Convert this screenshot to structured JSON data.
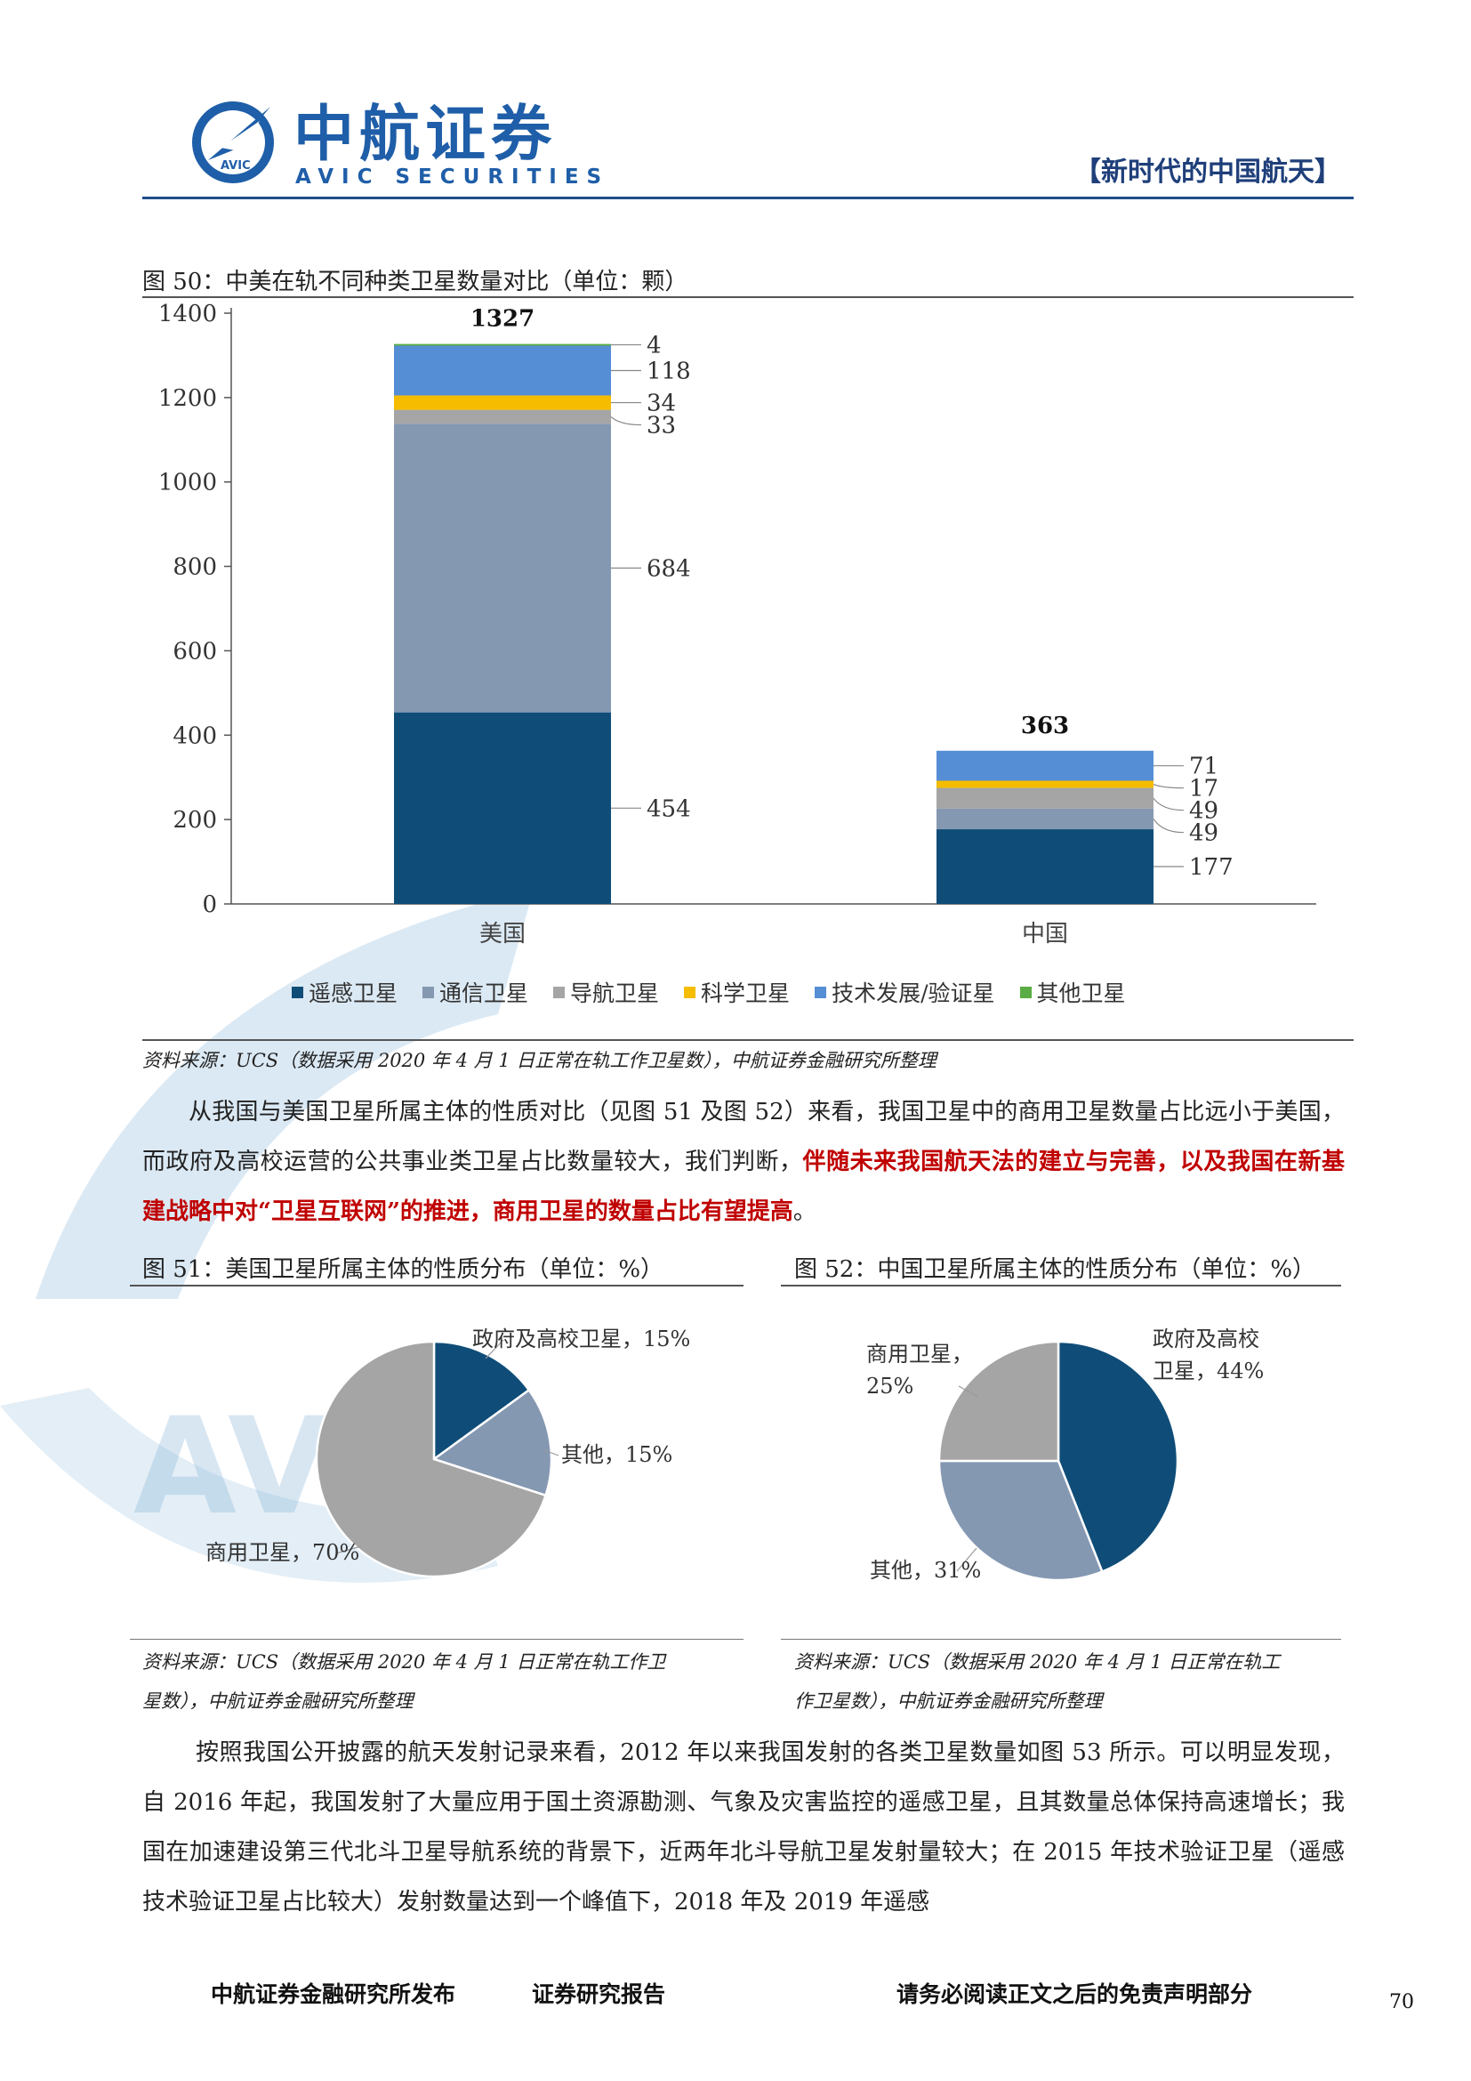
{
  "header": {
    "logo_cn": "中航证券",
    "logo_en": "AVIC SECURITIES",
    "logo_badge": "AVIC",
    "section_tag": "【新时代的中国航天】"
  },
  "watermark": "AVIC",
  "figure50": {
    "title": "图 50：中美在轨不同种类卫星数量对比（单位：颗）",
    "source": "资料来源：UCS（数据采用 2020 年 4 月 1 日正常在轨工作卫星数），中航证券金融研究所整理"
  },
  "figure51": {
    "title": "图 51：美国卫星所属主体的性质分布（单位：%）",
    "source_line1": "资料来源：UCS（数据采用 2020 年 4 月 1 日正常在轨工作卫",
    "source_line2": "星数），中航证券金融研究所整理"
  },
  "figure52": {
    "title": "图 52：中国卫星所属主体的性质分布（单位：%）",
    "source_line1": "资料来源：UCS（数据采用 2020 年 4 月 1 日正常在轨工",
    "source_line2": "作卫星数），中航证券金融研究所整理"
  },
  "para1": {
    "text_a": "从我国与美国卫星所属主体的性质对比（见图 51 及图 52）来看，我国卫星中的商用卫星数量占比远小于美国，而政府及高校运营的公共事业类卫星占比数量较大，我们判断，",
    "text_b": "伴随未来我国航天法的建立与完善，以及我国在新基建战略中对“卫星互联网”的推进，商用卫星的数量占比有望提高",
    "text_c": "。"
  },
  "para2": {
    "text": "按照我国公开披露的航天发射记录来看，2012 年以来我国发射的各类卫星数量如图 53 所示。可以明显发现，自 2016 年起，我国发射了大量应用于国土资源勘测、气象及灾害监控的遥感卫星，且其数量总体保持高速增长；我国在加速建设第三代北斗卫星导航系统的背景下，近两年北斗导航卫星发射量较大；在 2015 年技术验证卫星（遥感技术验证卫星占比较大）发射数量达到一个峰值下，2018 年及 2019 年遥感"
  },
  "footer": {
    "publisher": "中航证券金融研究所发布",
    "report_type": "证券研究报告",
    "disclaimer": "请务必阅读正文之后的免责声明部分",
    "page": "70"
  },
  "colors": {
    "remote": "#0f4d78",
    "comm": "#8598b2",
    "nav": "#a5a5a5",
    "sci": "#f5bc00",
    "tech": "#558ed5",
    "other": "#5aac44",
    "brand": "#1f5ea8"
  },
  "chart_data": [
    {
      "type": "bar",
      "stacked": true,
      "categories": [
        "美国",
        "中国"
      ],
      "series": [
        {
          "name": "遥感卫星",
          "values": [
            454,
            177
          ],
          "color": "#0f4d78"
        },
        {
          "name": "通信卫星",
          "values": [
            684,
            49
          ],
          "color": "#8598b2"
        },
        {
          "name": "导航卫星",
          "values": [
            33,
            49
          ],
          "color": "#a5a5a5"
        },
        {
          "name": "科学卫星",
          "values": [
            34,
            17
          ],
          "color": "#f5bc00"
        },
        {
          "name": "技术发展/验证星",
          "values": [
            118,
            71
          ],
          "color": "#558ed5"
        },
        {
          "name": "其他卫星",
          "values": [
            4,
            0
          ],
          "color": "#5aac44"
        }
      ],
      "totals": [
        1327,
        363
      ],
      "yticks": [
        0,
        200,
        400,
        600,
        800,
        1000,
        1200,
        1400
      ],
      "ylim": [
        0,
        1400
      ],
      "legend_position": "bottom"
    },
    {
      "type": "pie",
      "title": "美国",
      "slices": [
        {
          "label": "政府及高校卫星",
          "value": 15,
          "display": "政府及高校卫星，15%",
          "color": "#0f4d78"
        },
        {
          "label": "其他",
          "value": 15,
          "display": "其他，15%",
          "color": "#8598b2"
        },
        {
          "label": "商用卫星",
          "value": 70,
          "display": "商用卫星，70%",
          "color": "#a5a5a5"
        }
      ]
    },
    {
      "type": "pie",
      "title": "中国",
      "slices": [
        {
          "label": "政府及高校卫星",
          "value": 44,
          "display_line1": "政府及高校",
          "display_line2": "卫星，44%",
          "color": "#0f4d78"
        },
        {
          "label": "其他",
          "value": 31,
          "display": "其他，31%",
          "color": "#8598b2"
        },
        {
          "label": "商用卫星",
          "value": 25,
          "display_line1": "商用卫星，",
          "display_line2": "25%",
          "color": "#a5a5a5"
        }
      ]
    }
  ]
}
